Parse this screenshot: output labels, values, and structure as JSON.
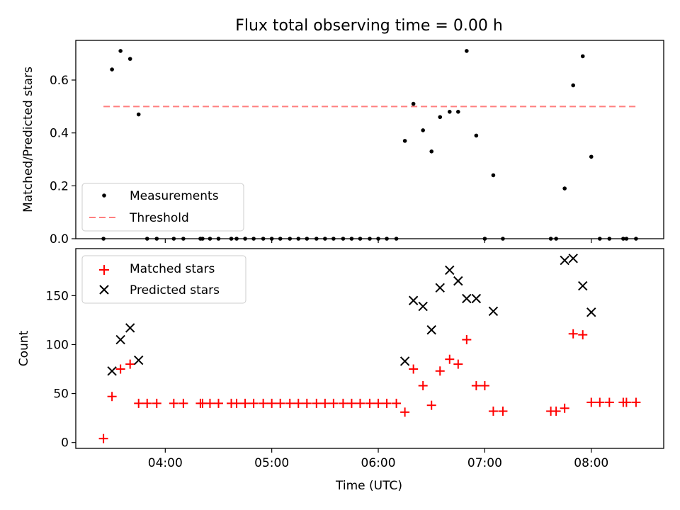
{
  "chart_data": [
    {
      "type": "scatter",
      "title": "Flux total observing time = 0.00 h",
      "xlabel": "",
      "ylabel": "Matched/Predicted stars",
      "xlim_hours": [
        3.16,
        8.68
      ],
      "ylim": [
        0,
        0.75
      ],
      "yticks": [
        0.0,
        0.2,
        0.4,
        0.6
      ],
      "ytick_labels": [
        "0.0",
        "0.2",
        "0.4",
        "0.6"
      ],
      "legend": {
        "position": "lower-left",
        "entries": [
          "Measurements",
          "Threshold"
        ]
      },
      "series": [
        {
          "name": "Measurements",
          "marker": "dot",
          "color": "#000000",
          "x_hours": [
            3.42,
            3.5,
            3.58,
            3.67,
            3.75,
            3.83,
            3.92,
            4.08,
            4.17,
            4.33,
            4.35,
            4.42,
            4.5,
            4.62,
            4.67,
            4.75,
            4.83,
            4.92,
            5.0,
            5.08,
            5.17,
            5.25,
            5.33,
            5.42,
            5.5,
            5.58,
            5.67,
            5.75,
            5.83,
            5.92,
            6.0,
            6.08,
            6.17,
            6.25,
            6.33,
            6.42,
            6.5,
            6.58,
            6.67,
            6.75,
            6.83,
            6.92,
            7.0,
            7.08,
            7.17,
            7.62,
            7.67,
            7.75,
            7.83,
            7.92,
            8.0,
            8.08,
            8.17,
            8.3,
            8.33,
            8.42
          ],
          "y": [
            0.0,
            0.64,
            0.71,
            0.68,
            0.47,
            0.0,
            0.0,
            0.0,
            0.0,
            0.0,
            0.0,
            0.0,
            0.0,
            0.0,
            0.0,
            0.0,
            0.0,
            0.0,
            0.0,
            0.0,
            0.0,
            0.0,
            0.0,
            0.0,
            0.0,
            0.0,
            0.0,
            0.0,
            0.0,
            0.0,
            0.0,
            0.0,
            0.0,
            0.37,
            0.51,
            0.41,
            0.33,
            0.46,
            0.48,
            0.48,
            0.71,
            0.39,
            0.0,
            0.24,
            0.0,
            0.0,
            0.0,
            0.19,
            0.58,
            0.69,
            0.31,
            0.0,
            0.0,
            0.0,
            0.0,
            0.0
          ]
        },
        {
          "name": "Threshold",
          "style": "dashed",
          "color": "#ff7f7f",
          "x_hours": [
            3.42,
            8.42
          ],
          "y": [
            0.5,
            0.5
          ]
        }
      ]
    },
    {
      "type": "scatter",
      "title": "",
      "xlabel": "Time (UTC)",
      "ylabel": "Count",
      "xlim_hours": [
        3.16,
        8.68
      ],
      "ylim": [
        -6,
        198
      ],
      "yticks": [
        0,
        50,
        100,
        150
      ],
      "ytick_labels": [
        "0",
        "50",
        "100",
        "150"
      ],
      "xticks_hours": [
        4,
        5,
        6,
        7,
        8
      ],
      "xtick_labels": [
        "04:00",
        "05:00",
        "06:00",
        "07:00",
        "08:00"
      ],
      "legend": {
        "position": "upper-left",
        "entries": [
          "Matched stars",
          "Predicted stars"
        ]
      },
      "series": [
        {
          "name": "Matched stars",
          "marker": "plus",
          "color": "#ff0000",
          "x_hours": [
            3.42,
            3.5,
            3.58,
            3.67,
            3.75,
            3.83,
            3.92,
            4.08,
            4.17,
            4.33,
            4.35,
            4.42,
            4.5,
            4.62,
            4.67,
            4.75,
            4.83,
            4.92,
            5.0,
            5.08,
            5.17,
            5.25,
            5.33,
            5.42,
            5.5,
            5.58,
            5.67,
            5.75,
            5.83,
            5.92,
            6.0,
            6.08,
            6.17,
            6.25,
            6.33,
            6.42,
            6.5,
            6.58,
            6.67,
            6.75,
            6.83,
            6.92,
            7.0,
            7.08,
            7.17,
            7.62,
            7.67,
            7.75,
            7.83,
            7.92,
            8.0,
            8.08,
            8.17,
            8.3,
            8.33,
            8.42
          ],
          "y": [
            4,
            47,
            75,
            80,
            40,
            40,
            40,
            40,
            40,
            40,
            40,
            40,
            40,
            40,
            40,
            40,
            40,
            40,
            40,
            40,
            40,
            40,
            40,
            40,
            40,
            40,
            40,
            40,
            40,
            40,
            40,
            40,
            40,
            31,
            75,
            58,
            38,
            73,
            85,
            80,
            105,
            58,
            58,
            32,
            32,
            32,
            32,
            35,
            111,
            110,
            41,
            41,
            41,
            41,
            41,
            41
          ]
        },
        {
          "name": "Predicted stars",
          "marker": "x",
          "color": "#000000",
          "x_hours": [
            3.5,
            3.58,
            3.67,
            3.75,
            6.25,
            6.33,
            6.42,
            6.5,
            6.58,
            6.67,
            6.75,
            6.83,
            6.92,
            7.08,
            7.75,
            7.83,
            7.92,
            8.0
          ],
          "y": [
            73,
            105,
            117,
            84,
            83,
            145,
            139,
            115,
            158,
            176,
            165,
            147,
            147,
            134,
            186,
            188,
            160,
            133
          ]
        }
      ]
    }
  ]
}
